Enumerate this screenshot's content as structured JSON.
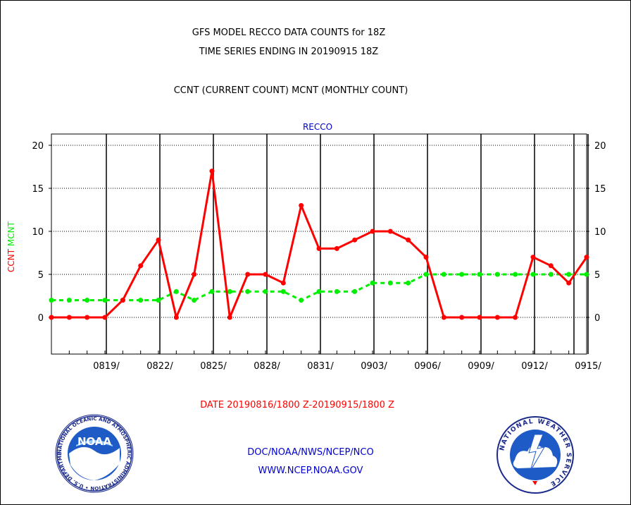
{
  "header": {
    "title_line1": "GFS MODEL RECCO DATA COUNTS for 18Z",
    "title_line2": "TIME SERIES ENDING IN 20190915 18Z",
    "subtitle": "CCNT (CURRENT COUNT) MCNT (MONTHLY COUNT)"
  },
  "chart_data": {
    "type": "line",
    "title": "RECCO",
    "ylabel_parts": [
      "CCNT",
      "MCNT"
    ],
    "xlabel": "DATE 20190816/1800 Z-20190915/1800 Z",
    "ylim": [
      -4,
      21
    ],
    "yticks": [
      0,
      5,
      10,
      15,
      20
    ],
    "x_days": [
      1,
      2,
      3,
      4,
      5,
      6,
      7,
      8,
      9,
      10,
      11,
      12,
      13,
      14,
      15,
      16,
      17,
      18,
      19,
      20,
      21,
      22,
      23,
      24,
      25,
      26,
      27,
      28,
      29,
      30,
      31
    ],
    "xtick_labels": [
      "0819/",
      "0822/",
      "0825/",
      "0828/",
      "0831/",
      "0903/",
      "0906/",
      "0909/",
      "0912/",
      "0915/"
    ],
    "grid": true,
    "series": [
      {
        "name": "CCNT",
        "color": "#ff0000",
        "style": "solid",
        "values": [
          0,
          0,
          0,
          0,
          2,
          6,
          9,
          0,
          5,
          17,
          0,
          5,
          5,
          4,
          13,
          8,
          8,
          9,
          10,
          10,
          9,
          7,
          0,
          0,
          0,
          0,
          0,
          7,
          6,
          4,
          7
        ]
      },
      {
        "name": "MCNT",
        "color": "#00ee00",
        "style": "dashed",
        "values": [
          2,
          2,
          2,
          2,
          2,
          2,
          2,
          3,
          2,
          3,
          3,
          3,
          3,
          3,
          2,
          3,
          3,
          3,
          4,
          4,
          4,
          5,
          5,
          5,
          5,
          5,
          5,
          5,
          5,
          5,
          5
        ]
      }
    ]
  },
  "footer": {
    "line1": "DOC/NOAA/NWS/NCEP/NCO",
    "line2": "WWW.NCEP.NOAA.GOV"
  },
  "logos": {
    "noaa_text": "NOAA",
    "noaa_ring_text": "NATIONAL OCEANIC AND ATMOSPHERIC ADMINISTRATION • U.S. DEPARTMENT OF COMMERCE",
    "nws_ring_text": "NATIONAL WEATHER SERVICE"
  }
}
